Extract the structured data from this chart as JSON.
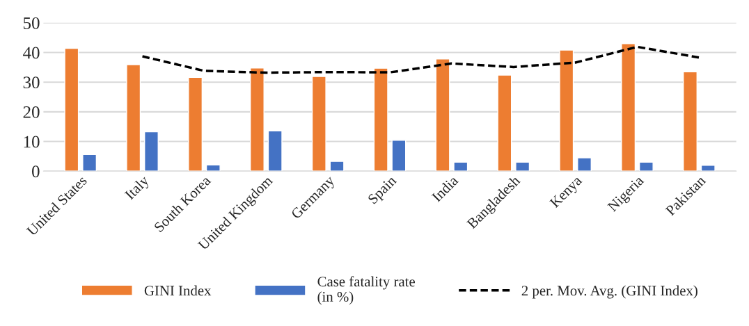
{
  "chart_data": {
    "type": "bar",
    "categories": [
      "United States",
      "Italy",
      "South Korea",
      "United Kingdom",
      "Germany",
      "Spain",
      "India",
      "Bangladesh",
      "Kenya",
      "Nigeria",
      "Pakistan"
    ],
    "series": [
      {
        "name": "GINI Index",
        "color": "#ed7d31",
        "values": [
          41.4,
          35.9,
          31.6,
          34.8,
          31.9,
          34.7,
          37.8,
          32.4,
          40.8,
          43.0,
          33.5
        ]
      },
      {
        "name": "Case fatality rate\n(in %)",
        "color": "#4472c4",
        "values": [
          5.6,
          13.3,
          2.1,
          13.6,
          3.3,
          10.4,
          3.0,
          3.0,
          4.5,
          3.0,
          2.0
        ]
      },
      {
        "name": "2 per. Mov. Avg. (GINI Index)",
        "color": "#000000",
        "type": "line",
        "line_style": "dashed",
        "values": [
          null,
          38.7,
          33.8,
          33.2,
          33.4,
          33.3,
          36.3,
          35.1,
          36.6,
          41.9,
          38.3
        ]
      }
    ],
    "ylim": [
      0,
      50
    ],
    "yticks": [
      0,
      10,
      20,
      30,
      40,
      50
    ],
    "grid": "y",
    "legend": "bottom"
  }
}
